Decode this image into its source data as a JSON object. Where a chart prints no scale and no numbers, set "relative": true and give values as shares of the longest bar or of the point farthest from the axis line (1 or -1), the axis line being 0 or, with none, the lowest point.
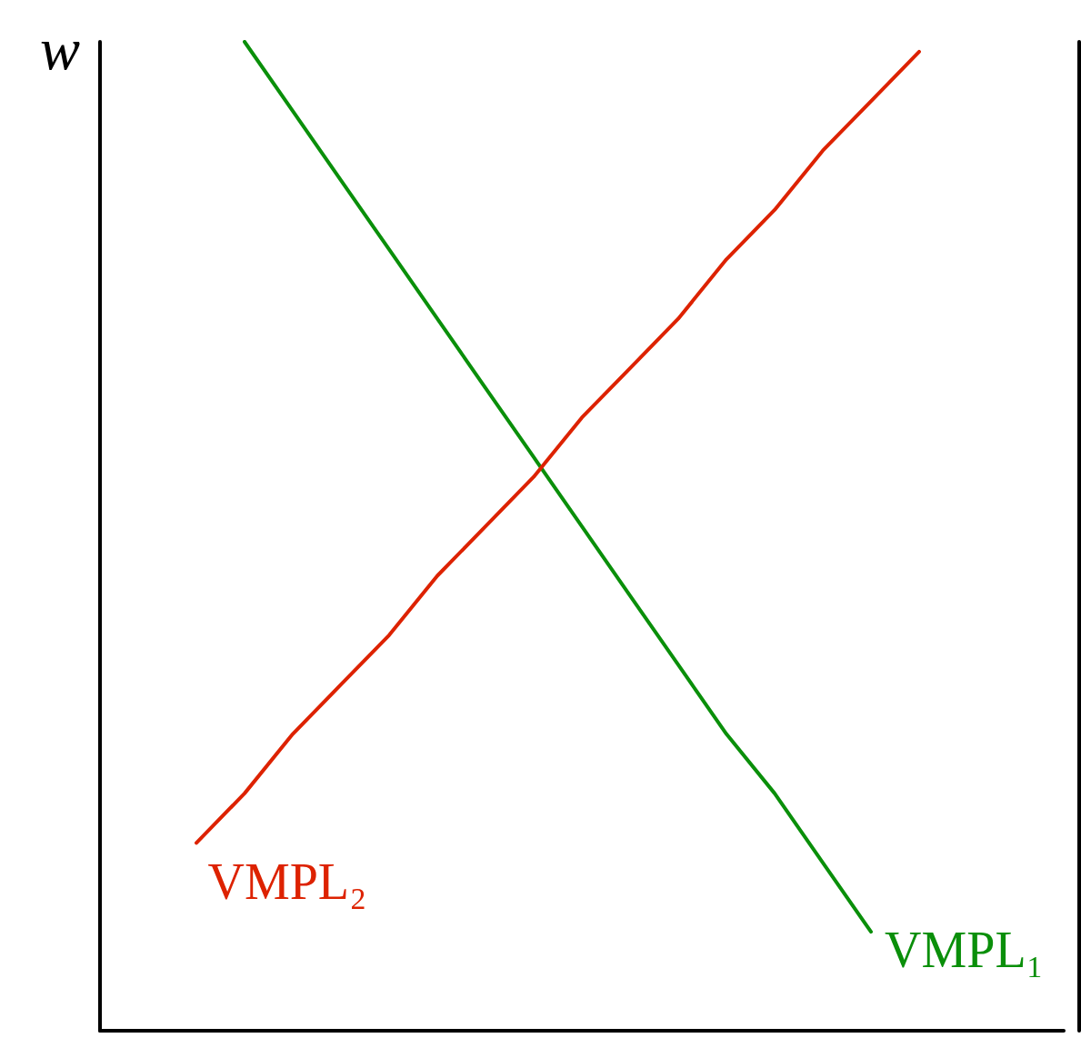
{
  "chart_data": {
    "type": "line",
    "relative": true,
    "ylabel": "w",
    "legend": false,
    "grid": false,
    "marker": "none",
    "line_style": "solid",
    "categories": [
      null,
      null,
      null,
      null,
      null,
      null,
      null,
      null,
      null,
      null,
      null,
      null,
      null,
      null,
      null,
      null,
      null,
      null,
      null,
      null,
      null
    ],
    "series": [
      {
        "name": "VMPL₁",
        "color": "#0a8f0a",
        "values": [
          null,
          null,
          null,
          1.0,
          0.93,
          0.86,
          0.79,
          0.72,
          0.65,
          0.58,
          0.51,
          0.44,
          0.37,
          0.3,
          0.24,
          0.17,
          0.1,
          null,
          null,
          null,
          null
        ]
      },
      {
        "name": "VMPL₂",
        "color": "#dd2200",
        "values": [
          null,
          null,
          0.19,
          0.24,
          0.3,
          0.35,
          0.4,
          0.46,
          0.51,
          0.56,
          0.62,
          0.67,
          0.72,
          0.78,
          0.83,
          0.89,
          0.94,
          0.99,
          null,
          null,
          null
        ]
      }
    ]
  }
}
